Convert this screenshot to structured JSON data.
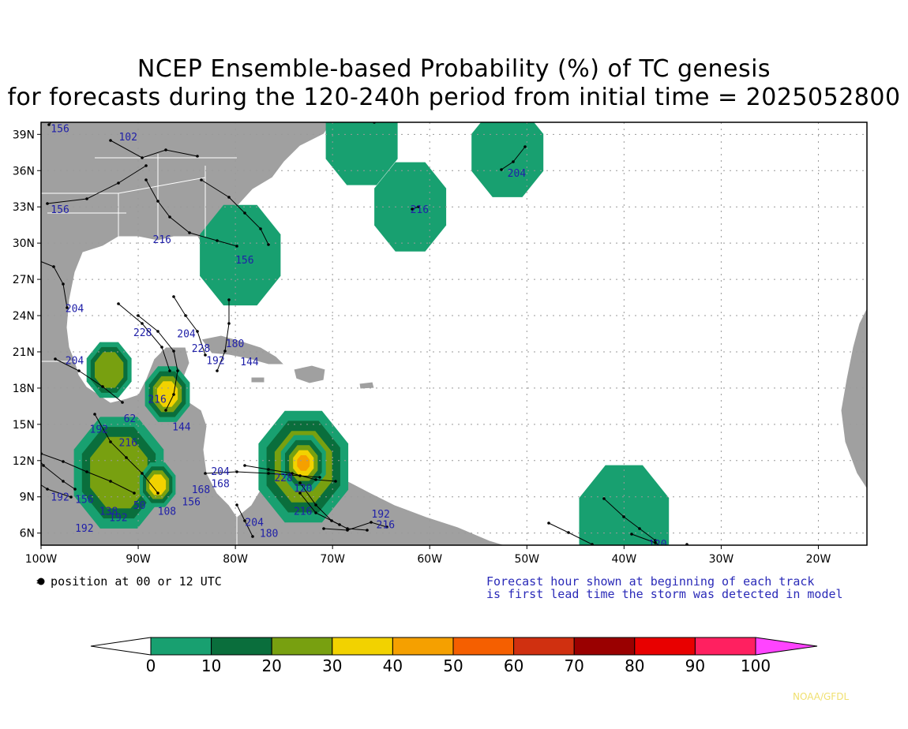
{
  "title_line1": "NCEP Ensemble-based Probability (%) of TC genesis",
  "title_line2": "for forecasts during the 120-240h period from initial time = 2025052800",
  "axes": {
    "lat_labels": [
      "39N",
      "36N",
      "33N",
      "30N",
      "27N",
      "24N",
      "21N",
      "18N",
      "15N",
      "12N",
      "9N",
      "6N"
    ],
    "lon_labels": [
      "100W",
      "90W",
      "80W",
      "70W",
      "60W",
      "50W",
      "40W",
      "30W",
      "20W"
    ],
    "lat_values": [
      39,
      36,
      33,
      30,
      27,
      24,
      21,
      18,
      15,
      12,
      9,
      6
    ],
    "lon_values": [
      -100,
      -90,
      -80,
      -70,
      -60,
      -50,
      -40,
      -30,
      -20
    ],
    "lon_range": [
      -100,
      -15
    ],
    "lat_range": [
      5,
      40
    ],
    "grid": "dotted"
  },
  "legend_note": "= position at 00 or 12 UTC",
  "forecast_note_line1": "Forecast hour shown at beginning of each track",
  "forecast_note_line2": "is first lead time the storm was detected in model",
  "credit": "NOAA/GFDL",
  "colorbar": {
    "labels": [
      "0",
      "10",
      "20",
      "30",
      "40",
      "50",
      "60",
      "70",
      "80",
      "90",
      "100"
    ],
    "colors": [
      "#ffffff",
      "#18a070",
      "#0a6e3c",
      "#78a010",
      "#f2d200",
      "#f5a000",
      "#f55f00",
      "#d03010",
      "#9a0000",
      "#e80000",
      "#ff2060",
      "#ff44ff"
    ]
  },
  "colors": {
    "land": "#a0a0a0",
    "ocean": "#ffffff",
    "track": "#000000",
    "track_label": "#2020a8"
  },
  "probability_areas": [
    {
      "lon": -62,
      "lat": 33,
      "level": 1,
      "radius_deg": 4
    },
    {
      "lon": -52,
      "lat": 37.5,
      "level": 1,
      "radius_deg": 4
    },
    {
      "lon": -67,
      "lat": 38.5,
      "level": 1,
      "radius_deg": 4
    },
    {
      "lon": -79.5,
      "lat": 29,
      "level": 1,
      "radius_deg": 4.5
    },
    {
      "lon": -40,
      "lat": 7,
      "level": 1,
      "radius_deg": 5
    },
    {
      "lon": -73,
      "lat": 11.5,
      "level": 3,
      "radius_deg": 5
    },
    {
      "lon": -73,
      "lat": 11.8,
      "level": 5,
      "radius_deg": 2.5
    },
    {
      "lon": -87,
      "lat": 17.5,
      "level": 4,
      "radius_deg": 2.5
    },
    {
      "lon": -93,
      "lat": 19.5,
      "level": 3,
      "radius_deg": 2.5
    },
    {
      "lon": -92,
      "lat": 11,
      "level": 3,
      "radius_deg": 5
    },
    {
      "lon": -88,
      "lat": 10,
      "level": 4,
      "radius_deg": 2
    }
  ],
  "track_labels": [
    {
      "text": "156",
      "lon": -99,
      "lat": 39.2
    },
    {
      "text": "102",
      "lon": -92,
      "lat": 38.5
    },
    {
      "text": "156",
      "lon": -99,
      "lat": 32.5
    },
    {
      "text": "216",
      "lon": -62,
      "lat": 32.5
    },
    {
      "text": "204",
      "lon": -52,
      "lat": 35.5
    },
    {
      "text": "216",
      "lon": -88.5,
      "lat": 30
    },
    {
      "text": "156",
      "lon": -80,
      "lat": 28.3
    },
    {
      "text": "204",
      "lon": -97.5,
      "lat": 24.3
    },
    {
      "text": "228",
      "lon": -90.5,
      "lat": 22.3
    },
    {
      "text": "204",
      "lon": -86,
      "lat": 22.2
    },
    {
      "text": "228",
      "lon": -84.5,
      "lat": 21
    },
    {
      "text": "180",
      "lon": -81,
      "lat": 21.4
    },
    {
      "text": "192",
      "lon": -83,
      "lat": 20
    },
    {
      "text": "144",
      "lon": -79.5,
      "lat": 19.9
    },
    {
      "text": "204",
      "lon": -97.5,
      "lat": 20
    },
    {
      "text": "216",
      "lon": -89,
      "lat": 16.8
    },
    {
      "text": "144",
      "lon": -86.5,
      "lat": 14.5
    },
    {
      "text": "62",
      "lon": -91.5,
      "lat": 15.2
    },
    {
      "text": "192",
      "lon": -95,
      "lat": 14.3
    },
    {
      "text": "216",
      "lon": -92,
      "lat": 13.2
    },
    {
      "text": "204",
      "lon": -82.5,
      "lat": 10.8
    },
    {
      "text": "168",
      "lon": -82.5,
      "lat": 9.8
    },
    {
      "text": "228",
      "lon": -76,
      "lat": 10.3
    },
    {
      "text": "120",
      "lon": -74,
      "lat": 9.4
    },
    {
      "text": "216",
      "lon": -74,
      "lat": 7.5
    },
    {
      "text": "192",
      "lon": -66,
      "lat": 7.3
    },
    {
      "text": "216",
      "lon": -65.5,
      "lat": 6.4
    },
    {
      "text": "204",
      "lon": -79,
      "lat": 6.6
    },
    {
      "text": "180",
      "lon": -77.5,
      "lat": 5.7
    },
    {
      "text": "192",
      "lon": -99,
      "lat": 8.7
    },
    {
      "text": "192",
      "lon": -96.5,
      "lat": 6.1
    },
    {
      "text": "156",
      "lon": -96.5,
      "lat": 8.5
    },
    {
      "text": "138",
      "lon": -94,
      "lat": 7.5
    },
    {
      "text": "192",
      "lon": -93,
      "lat": 7
    },
    {
      "text": "108",
      "lon": -88,
      "lat": 7.5
    },
    {
      "text": "156",
      "lon": -85.5,
      "lat": 8.3
    },
    {
      "text": "168",
      "lon": -84.5,
      "lat": 9.3
    },
    {
      "text": "50",
      "lon": -90.5,
      "lat": 8
    },
    {
      "text": "120",
      "lon": -37.5,
      "lat": 4.8
    }
  ]
}
